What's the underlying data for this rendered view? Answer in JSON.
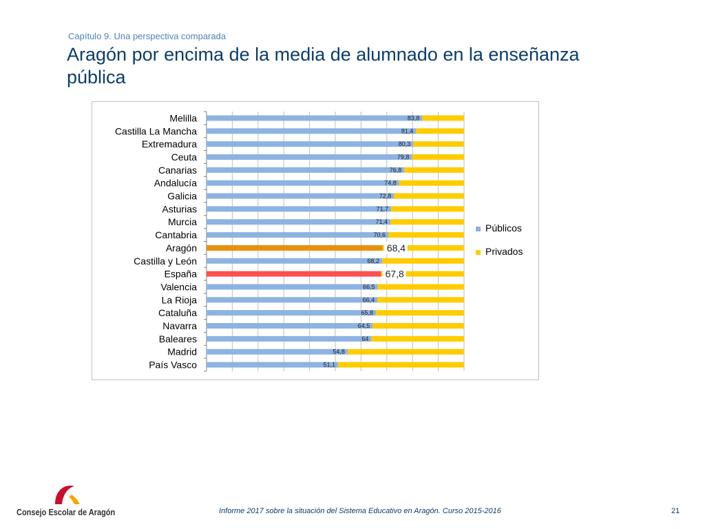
{
  "header": {
    "chapter": "Capítulo 9. Una perspectiva comparada",
    "title": "Aragón por encima de la media de alumnado en la enseñanza pública"
  },
  "chart_data": {
    "type": "bar",
    "orientation": "horizontal",
    "stacked": "percent",
    "categories": [
      "Melilla",
      "Castilla La Mancha",
      "Extremadura",
      "Ceuta",
      "Canarias",
      "Andalucía",
      "Galicia",
      "Asturias",
      "Murcia",
      "Cantabria",
      "Aragón",
      "Castilla y León",
      "España",
      "Valencia",
      "La Rioja",
      "Cataluña",
      "Navarra",
      "Baleares",
      "Madrid",
      "País Vasco"
    ],
    "series": [
      {
        "name": "Públicos",
        "color": "#8db3e2",
        "values": [
          83.8,
          81.4,
          80.3,
          79.8,
          76.8,
          74.8,
          72.8,
          71.7,
          71.4,
          70.6,
          68.4,
          68.2,
          67.8,
          66.5,
          66.4,
          65.8,
          64.5,
          64,
          54.8,
          51.1
        ]
      },
      {
        "name": "Privados",
        "color": "#ffcc00",
        "values": [
          16.2,
          18.6,
          19.7,
          20.2,
          23.2,
          25.2,
          27.2,
          28.3,
          28.6,
          29.4,
          31.6,
          31.8,
          32.2,
          33.5,
          33.6,
          34.2,
          35.5,
          36,
          45.2,
          48.9
        ]
      }
    ],
    "data_labels": [
      "83,8",
      "81,4",
      "80,3",
      "79,8",
      "76,8",
      "74,8",
      "72,8",
      "71,7",
      "71,4",
      "70,6",
      "68,4",
      "68,2",
      "67,8",
      "66,5",
      "66,4",
      "65,8",
      "64,5",
      "64",
      "54,8",
      "51,1"
    ],
    "highlights": {
      "Aragón": "#e8900e",
      "España": "#ff5050"
    },
    "xlim": [
      0,
      100
    ],
    "grid": true,
    "legend": "right"
  },
  "footer": {
    "report": "Informe 2017 sobre la situación del Sistema Educativo en Aragón. Curso 2015-2016",
    "page": "21"
  },
  "logo": {
    "text": "Consejo Escolar de Aragón",
    "colors": {
      "red": "#c8102e",
      "yellow": "#f2a900"
    }
  }
}
